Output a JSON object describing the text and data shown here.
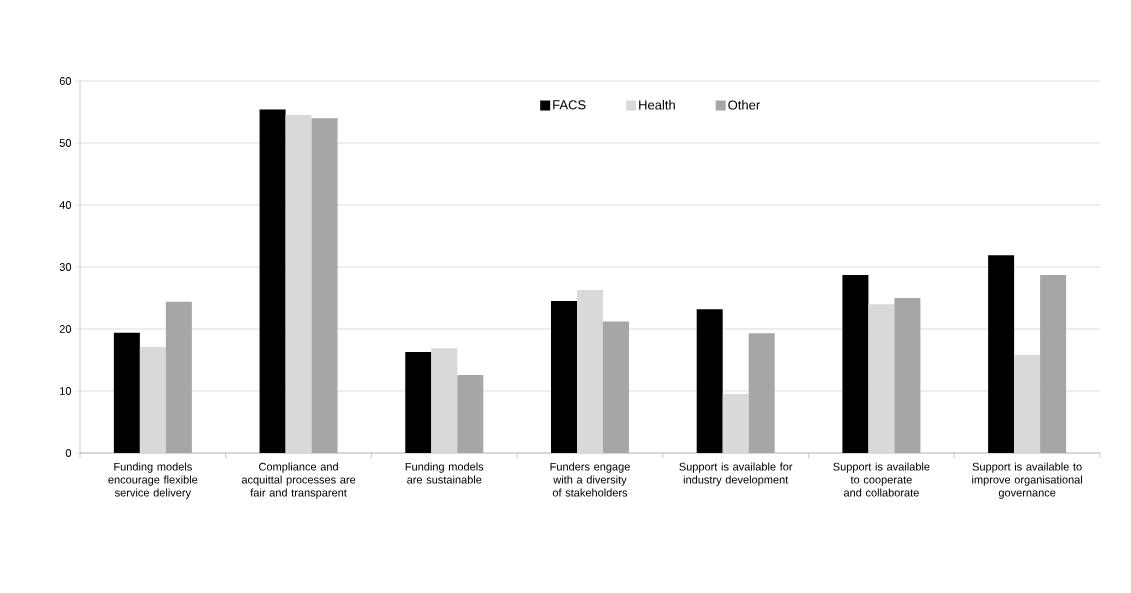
{
  "chart_data": {
    "type": "bar",
    "categories": [
      "Funding models encourage flexible service delivery",
      "Compliance and acquittal processes are fair and transparent",
      "Funding models are sustainable",
      "Funders engage with a diversity of stakeholders",
      "Support is available for industry development",
      "Support is available to cooperate and collaborate",
      "Support is available to improve organisational governance"
    ],
    "series": [
      {
        "name": "FACS",
        "color": "#000000",
        "values": [
          19.4,
          55.4,
          16.3,
          24.5,
          23.2,
          28.7,
          31.9
        ]
      },
      {
        "name": "Health",
        "color": "#d9d9d9",
        "values": [
          17.1,
          54.5,
          16.9,
          26.3,
          9.5,
          24.0,
          15.8
        ]
      },
      {
        "name": "Other",
        "color": "#a6a6a6",
        "values": [
          24.4,
          54.0,
          12.6,
          21.2,
          19.3,
          25.0,
          28.7
        ]
      }
    ],
    "ylim": [
      0,
      60
    ],
    "yticks": [
      0,
      10,
      20,
      30,
      40,
      50,
      60
    ],
    "grid": "y",
    "legend": "top"
  }
}
